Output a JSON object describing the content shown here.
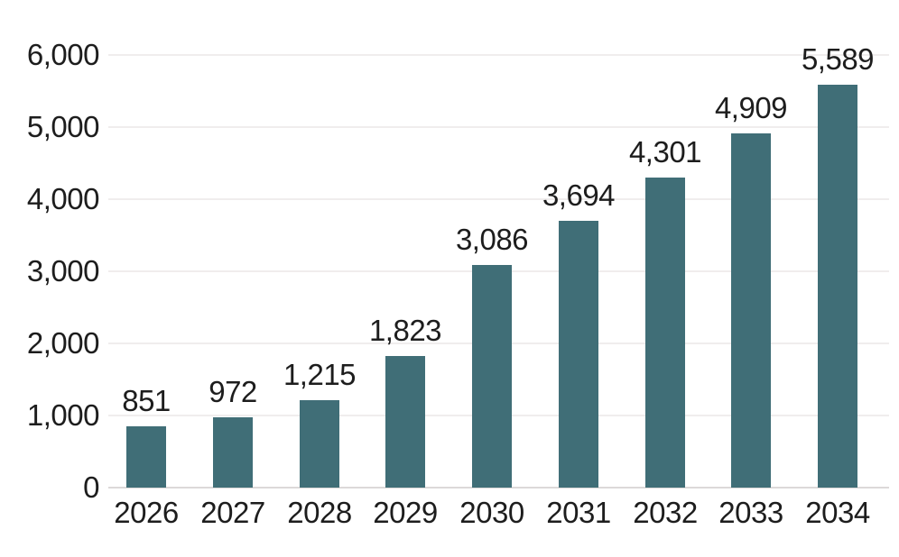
{
  "chart_data": {
    "type": "bar",
    "title": "",
    "xlabel": "",
    "ylabel": "",
    "categories": [
      "2026",
      "2027",
      "2028",
      "2029",
      "2030",
      "2031",
      "2032",
      "2033",
      "2034"
    ],
    "values": [
      851,
      972,
      1215,
      1823,
      3086,
      3694,
      4301,
      4909,
      5589
    ],
    "value_labels": [
      "851",
      "972",
      "1,215",
      "1,823",
      "3,086",
      "3,694",
      "4,301",
      "4,909",
      "5,589"
    ],
    "ylim": [
      0,
      6000
    ],
    "ytick_interval": 1000,
    "ytick_labels": [
      "0",
      "1,000",
      "2,000",
      "3,000",
      "4,000",
      "5,000",
      "6,000"
    ],
    "grid": "horizontal",
    "legend": "none",
    "colors": {
      "bar": "#406e77",
      "text": "#1d1d1d",
      "gridline": "#f0eded",
      "axis_line": "#dcd9d9",
      "background": "#ffffff"
    }
  }
}
